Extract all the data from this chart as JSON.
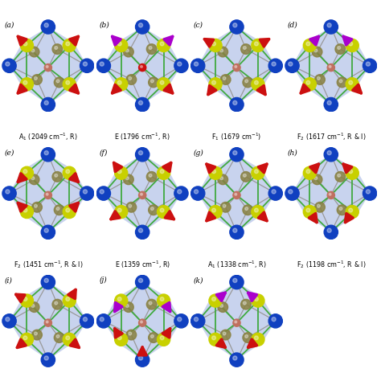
{
  "panels": [
    {
      "label": "(a)",
      "caption": "A$_1$ (2049 cm$^{-1}$, R)"
    },
    {
      "label": "(b)",
      "caption": "E (1796 cm$^{-1}$, R)"
    },
    {
      "label": "(c)",
      "caption": "F$_1$ (1679 cm$^{-1}$)"
    },
    {
      "label": "(d)",
      "caption": "F$_2$ (1617 cm$^{-1}$, R & I)"
    },
    {
      "label": "(e)",
      "caption": "F$_2$ (1451 cm$^{-1}$, R & I)"
    },
    {
      "label": "(f)",
      "caption": "E (1359 cm$^{-1}$, R)"
    },
    {
      "label": "(g)",
      "caption": "A$_1$ (1338 cm$^{-1}$, R)"
    },
    {
      "label": "(h)",
      "caption": "F$_2$ (1198 cm$^{-1}$, R & I)"
    },
    {
      "label": "(i)",
      "caption": ""
    },
    {
      "label": "(j)",
      "caption": ""
    },
    {
      "label": "(k)",
      "caption": ""
    }
  ],
  "bg_color": "#ffffff",
  "cage_bg": "#bbc8ea",
  "blue": "#1040c0",
  "yellow": "#c8d000",
  "olive": "#888040",
  "pink_olive": "#b09080",
  "red": "#cc1010",
  "purple": "#aa00cc",
  "green": "#40aa40",
  "gray": "#999999",
  "grid_rows": [
    [
      0,
      1,
      2,
      3
    ],
    [
      4,
      5,
      6,
      7
    ],
    [
      8,
      9,
      10
    ]
  ],
  "figsize": [
    4.74,
    4.74
  ],
  "dpi": 100
}
